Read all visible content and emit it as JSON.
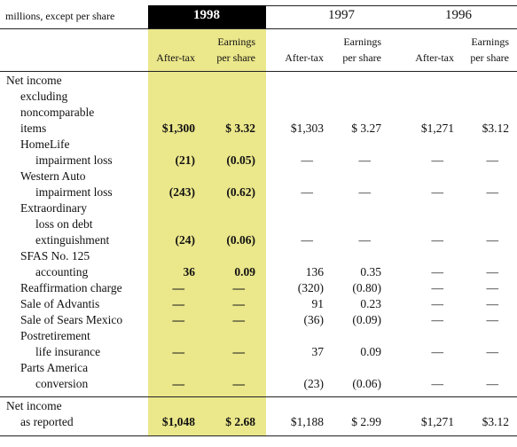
{
  "table": {
    "unit_note": "millions, except per share",
    "years": [
      "1998",
      "1997",
      "1996"
    ],
    "subheaders": {
      "after_tax": "After-tax",
      "eps": [
        "Earnings",
        "per share"
      ]
    },
    "rows": [
      {
        "label": [
          "Net income",
          "excluding",
          "noncomparable",
          "items"
        ],
        "values": [
          "$1,300",
          "$ 3.32",
          "$1,303",
          "$ 3.27",
          "$1,271",
          "$3.12"
        ]
      },
      {
        "label": [
          "HomeLife",
          "impairment loss"
        ],
        "values": [
          "(21)",
          "(0.05)",
          "—",
          "—",
          "—",
          "—"
        ]
      },
      {
        "label": [
          "Western Auto",
          "impairment loss"
        ],
        "values": [
          "(243)",
          "(0.62)",
          "—",
          "—",
          "—",
          "—"
        ]
      },
      {
        "label": [
          "Extraordinary",
          "loss on debt",
          "extinguishment"
        ],
        "values": [
          "(24)",
          "(0.06)",
          "—",
          "—",
          "—",
          "—"
        ]
      },
      {
        "label": [
          "SFAS No. 125",
          "accounting"
        ],
        "values": [
          "36",
          "0.09",
          "136",
          "0.35",
          "—",
          "—"
        ]
      },
      {
        "label": [
          "Reaffirmation charge"
        ],
        "values": [
          "—",
          "—",
          "(320)",
          "(0.80)",
          "—",
          "—"
        ]
      },
      {
        "label": [
          "Sale of Advantis"
        ],
        "values": [
          "—",
          "—",
          "91",
          "0.23",
          "—",
          "—"
        ]
      },
      {
        "label": [
          "Sale of Sears Mexico"
        ],
        "values": [
          "—",
          "—",
          "(36)",
          "(0.09)",
          "—",
          "—"
        ]
      },
      {
        "label": [
          "Postretirement",
          "life insurance"
        ],
        "values": [
          "—",
          "—",
          "37",
          "0.09",
          "—",
          "—"
        ]
      },
      {
        "label": [
          "Parts America",
          "conversion"
        ],
        "values": [
          "—",
          "—",
          "(23)",
          "(0.06)",
          "—",
          "—"
        ]
      },
      {
        "label": [
          "Net income",
          "as reported"
        ],
        "values": [
          "$1,048",
          "$ 2.68",
          "$1,188",
          "$ 2.99",
          "$1,271",
          "$3.12"
        ]
      }
    ]
  }
}
